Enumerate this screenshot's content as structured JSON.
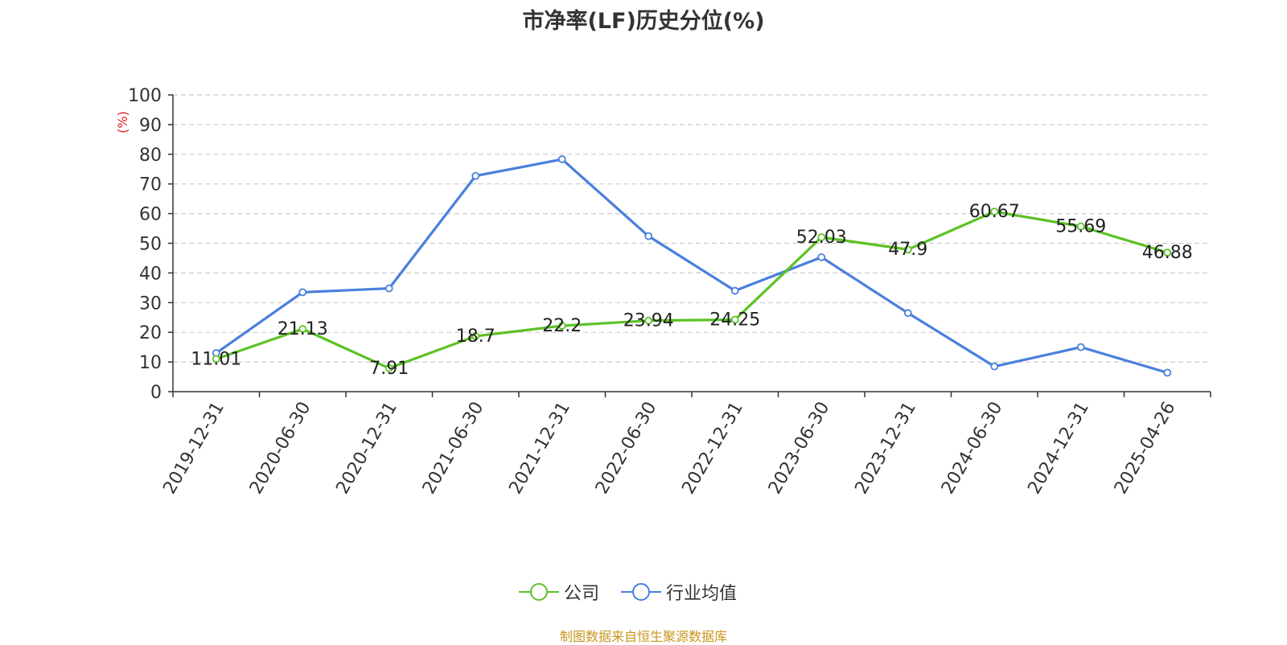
{
  "chart_data": {
    "type": "line",
    "title": "市净率(LF)历史分位(%)",
    "ylabel": "(%)",
    "ylim": [
      0,
      100
    ],
    "yticks": [
      0,
      10,
      20,
      30,
      40,
      50,
      60,
      70,
      80,
      90,
      100
    ],
    "grid": true,
    "legend_position": "bottom-center",
    "categories": [
      "2019-12-31",
      "2020-06-30",
      "2020-12-31",
      "2021-06-30",
      "2021-12-31",
      "2022-06-30",
      "2022-12-31",
      "2023-06-30",
      "2023-12-31",
      "2024-06-30",
      "2024-12-31",
      "2025-04-26"
    ],
    "series": [
      {
        "name": "公司",
        "color": "#5cc226",
        "values": [
          11.01,
          21.13,
          7.91,
          18.7,
          22.2,
          23.94,
          24.25,
          52.03,
          47.9,
          60.67,
          55.69,
          46.88
        ],
        "labels": [
          "11.01",
          "21.13",
          "7.91",
          "18.7",
          "22.2",
          "23.94",
          "24.25",
          "52.03",
          "47.9",
          "60.67",
          "55.69",
          "46.88"
        ]
      },
      {
        "name": "行业均值",
        "color": "#4a7fdd",
        "values": [
          13.0,
          33.5,
          34.8,
          72.7,
          78.3,
          52.4,
          34.0,
          45.3,
          26.5,
          8.5,
          15.0,
          6.4
        ]
      }
    ]
  },
  "source_note": "制图数据来自恒生聚源数据库"
}
